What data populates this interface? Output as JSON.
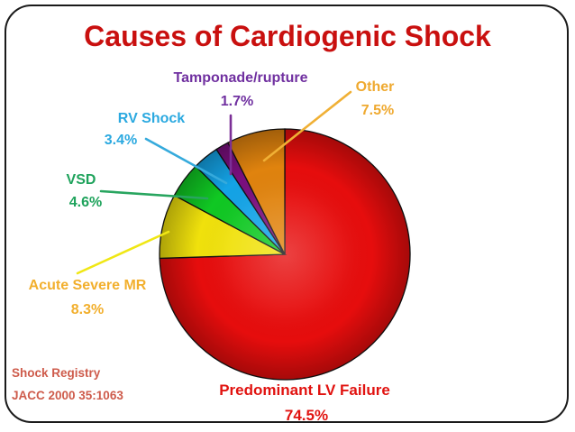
{
  "slide": {
    "title": "Causes of Cardiogenic Shock",
    "title_color": "#C9100F",
    "background_color": "#FFFFFF",
    "frame_border_color": "#1A1A1A",
    "source_color": "#CE5B4B"
  },
  "chart_data": {
    "type": "pie",
    "title": "Causes of Cardiogenic Shock",
    "start_angle_deg": 0,
    "direction": "clockwise",
    "units": "percent",
    "legend_position": "callout-labels",
    "slices": [
      {
        "label": "Predominant LV Failure",
        "value": 74.5,
        "pct_text": "74.5%",
        "color": "#E60D0D",
        "label_color": "#E11310",
        "line_color": null
      },
      {
        "label": "Acute Severe MR",
        "value": 8.3,
        "pct_text": "8.3%",
        "color": "#F0E10C",
        "label_color": "#F2AF2D",
        "line_color": "#F0E714"
      },
      {
        "label": "VSD",
        "value": 4.6,
        "pct_text": "4.6%",
        "color": "#10C823",
        "label_color": "#1FA35C",
        "line_color": "#28A55F"
      },
      {
        "label": "RV Shock",
        "value": 3.4,
        "pct_text": "3.4%",
        "color": "#14A3E6",
        "label_color": "#2BA9E0",
        "line_color": "#35AADC"
      },
      {
        "label": "Tamponade/rupture",
        "value": 1.7,
        "pct_text": "1.7%",
        "color": "#7A0F7E",
        "label_color": "#7030A0",
        "line_color": "#7B2F96"
      },
      {
        "label": "Other",
        "value": 7.5,
        "pct_text": "7.5%",
        "color": "#E0830E",
        "label_color": "#EFA92F",
        "line_color": "#F0B035"
      }
    ],
    "source_note": [
      "Shock Registry",
      "JACC 2000 35:1063"
    ]
  }
}
